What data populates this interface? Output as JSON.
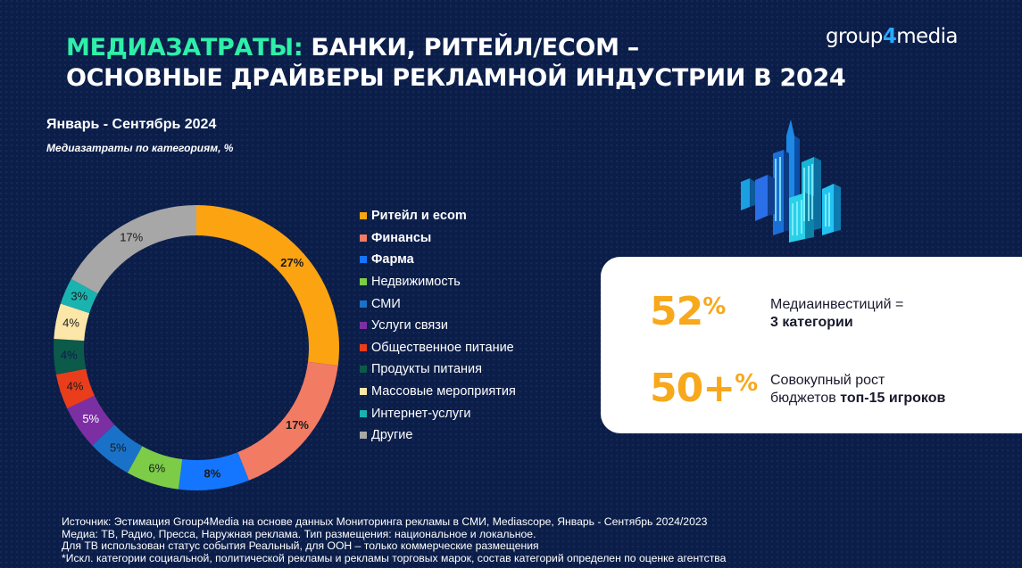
{
  "header": {
    "title_accent": "МЕДИАЗАТРАТЫ:",
    "title_line1_rest": " БАНКИ, РИТЕЙЛ/ECOM –",
    "title_line2": "ОСНОВНЫЕ ДРАЙВЕРЫ РЕКЛАМНОЙ ИНДУСТРИИ В 2024",
    "logo_part1": "group",
    "logo_part2": "4",
    "logo_part3": "media"
  },
  "period": "Январь - Сентябрь 2024",
  "chart_data": {
    "type": "pie",
    "donut": true,
    "title": "Медиазатраты по категориям, %",
    "unit": "%",
    "categories": [
      "Ритейл и ecom",
      "Финансы",
      "Фарма",
      "Недвижимость",
      "СМИ",
      "Услуги связи",
      "Общественное питание",
      "Продукты питания",
      "Массовые мероприятия",
      "Интернет-услуги",
      "Другие"
    ],
    "values": [
      27,
      17,
      8,
      6,
      5,
      5,
      4,
      4,
      4,
      3,
      17
    ],
    "labels": [
      "27%",
      "17%",
      "8%",
      "6%",
      "5%",
      "5%",
      "4%",
      "4%",
      "4%",
      "3%",
      "17%"
    ],
    "colors": [
      "#fca311",
      "#f27b63",
      "#1476ff",
      "#7ccc48",
      "#1a72c8",
      "#7c2fa3",
      "#ea3d1c",
      "#0c5a4a",
      "#fce7a8",
      "#1ab3b0",
      "#a7a7a7"
    ],
    "bold_in_legend": [
      true,
      true,
      true,
      false,
      false,
      false,
      false,
      false,
      false,
      false,
      false
    ],
    "bold_label": [
      true,
      true,
      true,
      false,
      false,
      false,
      false,
      false,
      false,
      false,
      false
    ],
    "label_colors": [
      "#1a1a1a",
      "#1a1a1a",
      "#1a1a1a",
      "#1a1a1a",
      "#1a1a1a",
      "#ffffff",
      "#1a1a1a",
      "#0b1e4a",
      "#1a1a1a",
      "#1a1a1a",
      "#1a1a1a"
    ],
    "legend_position": "right"
  },
  "kpis": [
    {
      "value": "52",
      "suffix": "%",
      "text_line1": "Медиаинвестиций =",
      "text_line2_bold": "3 категории",
      "text_line2_normal": ""
    },
    {
      "value": "50+",
      "suffix": "%",
      "text_line1": "Совокупный рост",
      "text_line2_normal": "бюджетов ",
      "text_line2_bold": "топ-15 игроков"
    }
  ],
  "footnotes": [
    "Источник: Эстимация Group4Media на основе данных Мониторинга рекламы в СМИ, Mediascope, Январь - Сентябрь 2024/2023",
    "Медиа: ТВ, Радио, Пресса, Наружная реклама. Тип размещения: национальное и локальное.",
    "Для ТВ использован статус события Реальный, для ООН – только коммерческие размещения",
    "*Искл. категории социальной, политической рекламы и рекламы торговых марок, состав категорий определен по оценке агентства"
  ],
  "icons": {
    "illustration": "isometric-city-illustration"
  }
}
